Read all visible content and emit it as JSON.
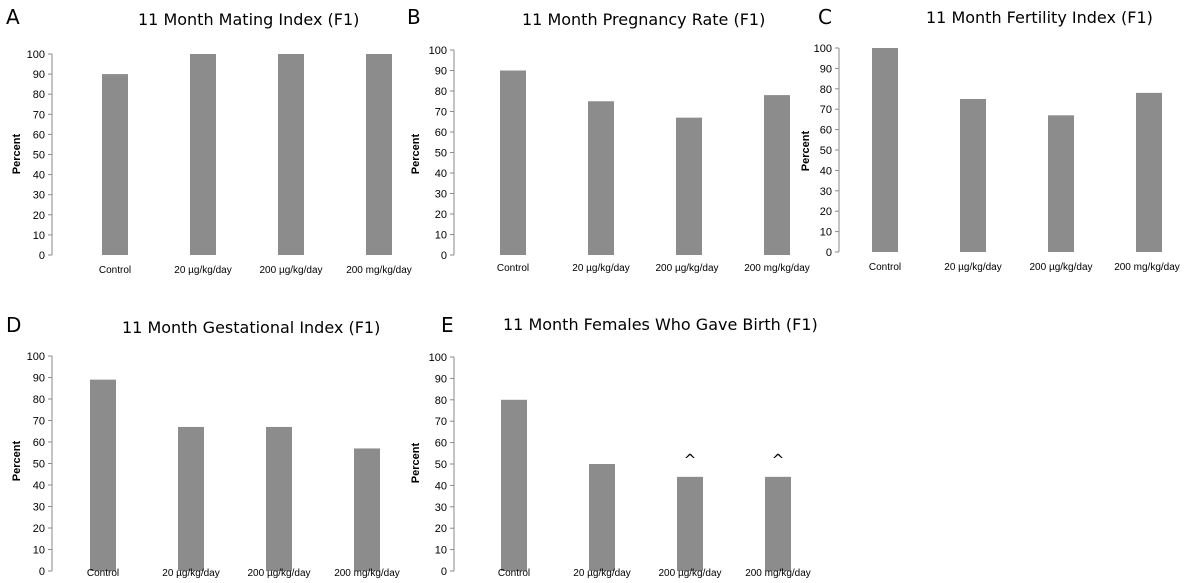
{
  "chart_data": [
    {
      "panel_letter": "A",
      "type": "bar",
      "title": "11 Month Mating Index (F1)",
      "ylabel": "Percent",
      "xlabel": "",
      "categories": [
        "Control",
        "20 µg/kg/day",
        "200 µg/kg/day",
        "200 mg/kg/day"
      ],
      "values": [
        90,
        100,
        100,
        100
      ],
      "ylim": [
        0,
        100
      ],
      "yticks": [
        0,
        10,
        20,
        30,
        40,
        50,
        60,
        70,
        80,
        90,
        100
      ],
      "bar_color": "#8c8c8c",
      "grid": false,
      "annotations": []
    },
    {
      "panel_letter": "B",
      "type": "bar",
      "title": "11 Month Pregnancy Rate (F1)",
      "ylabel": "Percent",
      "xlabel": "",
      "categories": [
        "Control",
        "20 µg/kg/day",
        "200 µg/kg/day",
        "200 mg/kg/day"
      ],
      "values": [
        90,
        75,
        67,
        78
      ],
      "ylim": [
        0,
        100
      ],
      "yticks": [
        0,
        10,
        20,
        30,
        40,
        50,
        60,
        70,
        80,
        90,
        100
      ],
      "bar_color": "#8c8c8c",
      "grid": false,
      "annotations": []
    },
    {
      "panel_letter": "C",
      "type": "bar",
      "title": "11 Month Fertility Index (F1)",
      "ylabel": "Percent",
      "xlabel": "",
      "categories": [
        "Control",
        "20 µg/kg/day",
        "200 µg/kg/day",
        "200 mg/kg/day"
      ],
      "values": [
        100,
        75,
        67,
        78
      ],
      "ylim": [
        0,
        100
      ],
      "yticks": [
        0,
        10,
        20,
        30,
        40,
        50,
        60,
        70,
        80,
        90,
        100
      ],
      "bar_color": "#8c8c8c",
      "grid": false,
      "annotations": []
    },
    {
      "panel_letter": "D",
      "type": "bar",
      "title": "11 Month Gestational Index (F1)",
      "ylabel": "Percent",
      "xlabel": "",
      "categories": [
        "Control",
        "20 µg/kg/day",
        "200 µg/kg/day",
        "200 mg/kg/day"
      ],
      "values": [
        89,
        67,
        67,
        57
      ],
      "ylim": [
        0,
        100
      ],
      "yticks": [
        0,
        10,
        20,
        30,
        40,
        50,
        60,
        70,
        80,
        90,
        100
      ],
      "bar_color": "#8c8c8c",
      "grid": false,
      "annotations": []
    },
    {
      "panel_letter": "E",
      "type": "bar",
      "title": "11 Month Females Who Gave Birth (F1)",
      "ylabel": "Percent",
      "xlabel": "",
      "categories": [
        "Control",
        "20 µg/kg/day",
        "200 µg/kg/day",
        "200 mg/kg/day"
      ],
      "values": [
        80,
        50,
        44,
        44
      ],
      "ylim": [
        0,
        100
      ],
      "yticks": [
        0,
        10,
        20,
        30,
        40,
        50,
        60,
        70,
        80,
        90,
        100
      ],
      "bar_color": "#8c8c8c",
      "grid": false,
      "annotations": [
        "",
        "",
        "^",
        "^"
      ]
    }
  ]
}
